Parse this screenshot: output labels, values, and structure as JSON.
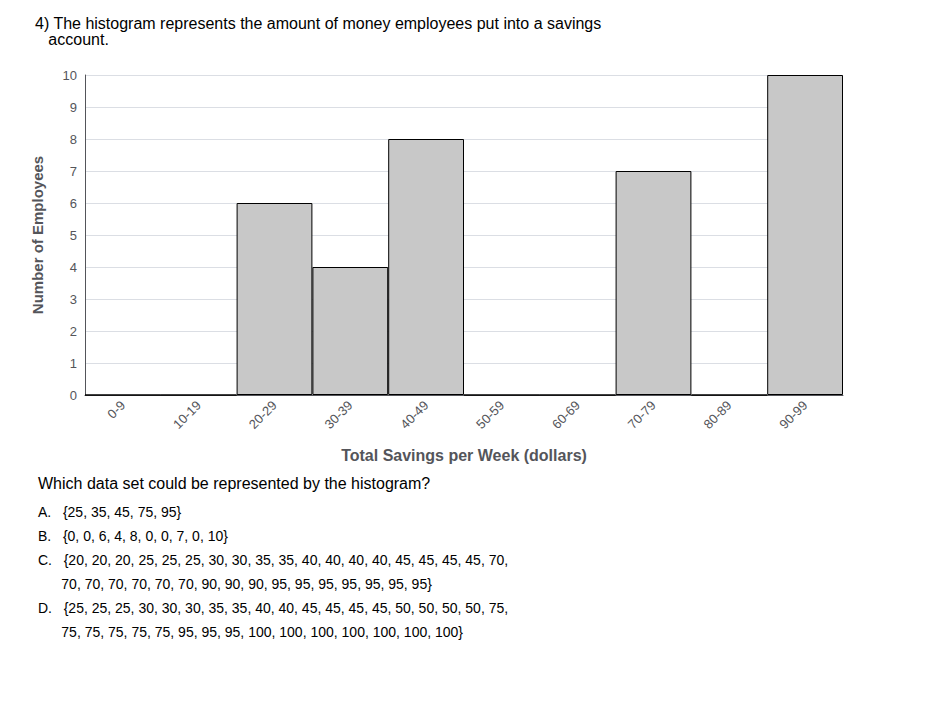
{
  "chart_data": {
    "type": "bar",
    "title": "4) The histogram represents the amount of money employees put into a savings\n   account.",
    "xlabel": "Total Savings per Week (dollars)",
    "ylabel": "Number of Employees",
    "categories": [
      "0-9",
      "10-19",
      "20-29",
      "30-39",
      "40-49",
      "50-59",
      "60-69",
      "70-79",
      "80-89",
      "90-99"
    ],
    "values": [
      0,
      0,
      6,
      4,
      8,
      0,
      0,
      7,
      0,
      10
    ],
    "color": "#c8c8c8",
    "ylim": [
      0,
      10
    ],
    "yticks": [
      0,
      1,
      2,
      3,
      4,
      5,
      6,
      7,
      8,
      9,
      10
    ],
    "grid": true,
    "annotations": [
      "Which data set could be represented by the histogram?",
      "A.   {25, 35, 45, 75, 95}",
      "B.   {0, 0, 6, 4, 8, 0, 0, 7, 0, 10}",
      "C.   {20, 20, 20, 25, 25, 25, 30, 30, 35, 35, 40, 40, 40, 40, 45, 45, 45, 45, 70,",
      "      70, 70, 70, 70, 70, 70, 90, 90, 90, 95, 95, 95, 95, 95, 95, 95}",
      "D.   {25, 25, 25, 30, 30, 30, 35, 35, 40, 40, 45, 45, 45, 45, 50, 50, 50, 50, 75,",
      "      75, 75, 75, 75, 75, 95, 95, 95, 100, 100, 100, 100, 100, 100, 100}"
    ]
  }
}
